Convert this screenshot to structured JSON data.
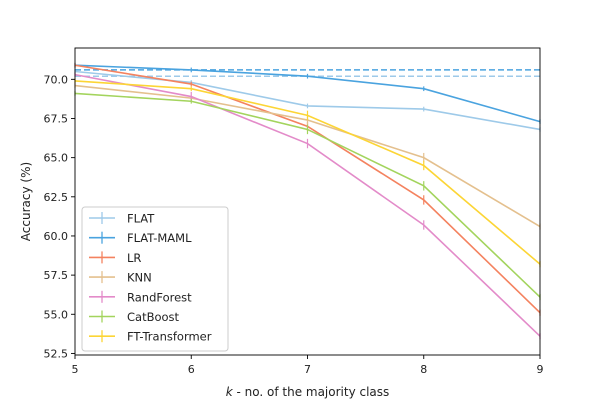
{
  "chart_data": {
    "type": "line",
    "title": "",
    "xlabel_italic": "k",
    "xlabel_rest": " - no. of the majority class",
    "ylabel": "Accuracy (%)",
    "xlim": [
      5,
      9
    ],
    "ylim": [
      52.4,
      72.0
    ],
    "x": [
      5,
      6,
      7,
      8,
      9
    ],
    "xticks": [
      "5",
      "6",
      "7",
      "8",
      "9"
    ],
    "yticks": [
      52.5,
      55.0,
      57.5,
      60.0,
      62.5,
      65.0,
      67.5,
      70.0
    ],
    "ytick_labels": [
      "52.5",
      "55.0",
      "57.5",
      "60.0",
      "62.5",
      "65.0",
      "67.5",
      "70.0"
    ],
    "grid": false,
    "legend_position": "lower-left",
    "reference_lines": [
      {
        "value": 70.6,
        "color": "#4aa3df",
        "style": "dashed"
      },
      {
        "value": 70.2,
        "color": "#9ecae9",
        "style": "dashed"
      }
    ],
    "series": [
      {
        "name": "FLAT",
        "color": "#9ecae9",
        "values": [
          70.5,
          69.8,
          68.3,
          68.1,
          66.8
        ],
        "errors": [
          0.15,
          0.15,
          0.15,
          0.15,
          0.15
        ]
      },
      {
        "name": "FLAT-MAML",
        "color": "#4aa3df",
        "values": [
          70.9,
          70.6,
          70.2,
          69.4,
          67.3
        ],
        "errors": [
          0.15,
          0.15,
          0.15,
          0.15,
          0.15
        ]
      },
      {
        "name": "LR",
        "color": "#f4825f",
        "values": [
          70.9,
          69.7,
          67.0,
          62.3,
          55.1
        ],
        "errors": [
          0.15,
          0.15,
          0.3,
          0.3,
          0.2
        ]
      },
      {
        "name": "KNN",
        "color": "#e4c08e",
        "values": [
          69.6,
          68.8,
          67.4,
          65.0,
          60.6
        ],
        "errors": [
          0.15,
          0.15,
          0.3,
          0.3,
          0.2
        ]
      },
      {
        "name": "RandForest",
        "color": "#e38bc9",
        "values": [
          70.3,
          68.9,
          65.9,
          60.7,
          53.6
        ],
        "errors": [
          0.15,
          0.3,
          0.3,
          0.3,
          0.2
        ]
      },
      {
        "name": "CatBoost",
        "color": "#a3d45d",
        "values": [
          69.1,
          68.6,
          66.8,
          63.2,
          56.1
        ],
        "errors": [
          0.15,
          0.15,
          0.3,
          0.3,
          0.2
        ]
      },
      {
        "name": "FT-Transformer",
        "color": "#fcd535",
        "values": [
          69.9,
          69.4,
          67.7,
          64.5,
          58.2
        ],
        "errors": [
          0.15,
          0.15,
          0.3,
          0.3,
          0.2
        ]
      }
    ]
  }
}
